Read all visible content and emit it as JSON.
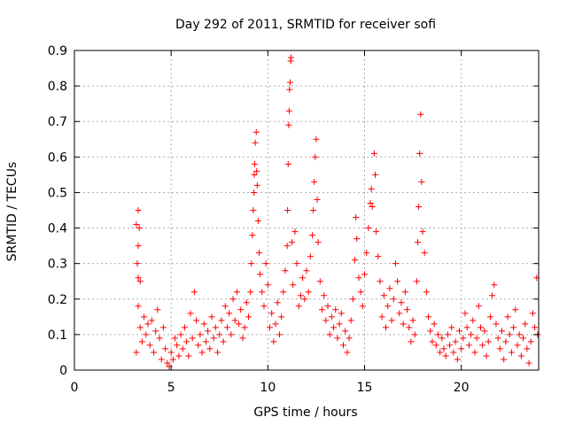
{
  "chart_data": {
    "type": "scatter",
    "title": "Day 292 of 2011, SRMTID for receiver sofi",
    "xlabel": "GPS time / hours",
    "ylabel": "SRMTID / TECUs",
    "xlim": [
      0,
      24
    ],
    "ylim": [
      0,
      0.9
    ],
    "xticks": [
      0,
      5,
      10,
      15,
      20
    ],
    "xtick_labels": [
      "0",
      "5",
      "10",
      "15",
      "20"
    ],
    "yticks": [
      0,
      0.1,
      0.2,
      0.3,
      0.4,
      0.5,
      0.6,
      0.7,
      0.8,
      0.9
    ],
    "ytick_labels": [
      "0",
      "0.1",
      "0.2",
      "0.3",
      "0.4",
      "0.5",
      "0.6",
      "0.7",
      "0.8",
      "0.9"
    ],
    "grid": true,
    "marker": "+",
    "colors": {
      "series": "#ff0000",
      "grid": "#b0b0b0",
      "axis": "#000000"
    },
    "series": [
      {
        "name": "SRMTID",
        "points": [
          [
            3.2,
            0.41
          ],
          [
            3.3,
            0.45
          ],
          [
            3.35,
            0.4
          ],
          [
            3.3,
            0.35
          ],
          [
            3.25,
            0.3
          ],
          [
            3.3,
            0.26
          ],
          [
            3.4,
            0.25
          ],
          [
            3.3,
            0.18
          ],
          [
            3.4,
            0.12
          ],
          [
            3.5,
            0.08
          ],
          [
            3.2,
            0.05
          ],
          [
            3.6,
            0.15
          ],
          [
            3.7,
            0.1
          ],
          [
            3.8,
            0.13
          ],
          [
            3.9,
            0.07
          ],
          [
            4.0,
            0.14
          ],
          [
            4.1,
            0.05
          ],
          [
            4.2,
            0.11
          ],
          [
            4.3,
            0.17
          ],
          [
            4.4,
            0.09
          ],
          [
            4.5,
            0.03
          ],
          [
            4.6,
            0.12
          ],
          [
            4.7,
            0.06
          ],
          [
            4.8,
            0.02
          ],
          [
            4.9,
            0.01
          ],
          [
            5.0,
            0.05
          ],
          [
            5.1,
            0.03
          ],
          [
            5.2,
            0.09
          ],
          [
            5.3,
            0.07
          ],
          [
            5.4,
            0.04
          ],
          [
            5.5,
            0.1
          ],
          [
            5.6,
            0.06
          ],
          [
            5.7,
            0.12
          ],
          [
            5.8,
            0.08
          ],
          [
            5.9,
            0.04
          ],
          [
            6.0,
            0.16
          ],
          [
            6.1,
            0.09
          ],
          [
            6.2,
            0.22
          ],
          [
            6.3,
            0.14
          ],
          [
            6.4,
            0.07
          ],
          [
            6.5,
            0.1
          ],
          [
            6.6,
            0.05
          ],
          [
            6.7,
            0.13
          ],
          [
            6.8,
            0.08
          ],
          [
            6.9,
            0.11
          ],
          [
            7.0,
            0.06
          ],
          [
            7.1,
            0.15
          ],
          [
            7.2,
            0.09
          ],
          [
            7.3,
            0.12
          ],
          [
            7.4,
            0.05
          ],
          [
            7.5,
            0.1
          ],
          [
            7.6,
            0.14
          ],
          [
            7.7,
            0.08
          ],
          [
            7.8,
            0.18
          ],
          [
            7.9,
            0.12
          ],
          [
            8.0,
            0.16
          ],
          [
            8.1,
            0.1
          ],
          [
            8.2,
            0.2
          ],
          [
            8.3,
            0.14
          ],
          [
            8.4,
            0.22
          ],
          [
            8.5,
            0.13
          ],
          [
            8.6,
            0.17
          ],
          [
            8.7,
            0.09
          ],
          [
            8.8,
            0.12
          ],
          [
            8.9,
            0.19
          ],
          [
            9.0,
            0.15
          ],
          [
            9.1,
            0.22
          ],
          [
            9.15,
            0.3
          ],
          [
            9.2,
            0.38
          ],
          [
            9.25,
            0.45
          ],
          [
            9.28,
            0.5
          ],
          [
            9.3,
            0.55
          ],
          [
            9.32,
            0.58
          ],
          [
            9.35,
            0.64
          ],
          [
            9.4,
            0.67
          ],
          [
            9.42,
            0.56
          ],
          [
            9.45,
            0.52
          ],
          [
            9.5,
            0.42
          ],
          [
            9.55,
            0.33
          ],
          [
            9.6,
            0.27
          ],
          [
            9.7,
            0.22
          ],
          [
            9.8,
            0.18
          ],
          [
            9.9,
            0.3
          ],
          [
            10.0,
            0.24
          ],
          [
            10.1,
            0.12
          ],
          [
            10.2,
            0.16
          ],
          [
            10.3,
            0.08
          ],
          [
            10.4,
            0.13
          ],
          [
            10.5,
            0.19
          ],
          [
            10.6,
            0.1
          ],
          [
            10.7,
            0.15
          ],
          [
            10.8,
            0.22
          ],
          [
            10.9,
            0.28
          ],
          [
            11.0,
            0.35
          ],
          [
            11.02,
            0.45
          ],
          [
            11.05,
            0.58
          ],
          [
            11.08,
            0.69
          ],
          [
            11.1,
            0.73
          ],
          [
            11.12,
            0.79
          ],
          [
            11.15,
            0.81
          ],
          [
            11.18,
            0.87
          ],
          [
            11.2,
            0.88
          ],
          [
            11.25,
            0.36
          ],
          [
            11.3,
            0.24
          ],
          [
            11.4,
            0.39
          ],
          [
            11.5,
            0.3
          ],
          [
            11.6,
            0.18
          ],
          [
            11.7,
            0.21
          ],
          [
            11.8,
            0.26
          ],
          [
            11.9,
            0.2
          ],
          [
            12.0,
            0.28
          ],
          [
            12.1,
            0.22
          ],
          [
            12.2,
            0.32
          ],
          [
            12.3,
            0.38
          ],
          [
            12.35,
            0.45
          ],
          [
            12.4,
            0.53
          ],
          [
            12.45,
            0.6
          ],
          [
            12.5,
            0.65
          ],
          [
            12.55,
            0.48
          ],
          [
            12.6,
            0.36
          ],
          [
            12.7,
            0.25
          ],
          [
            12.8,
            0.17
          ],
          [
            12.9,
            0.21
          ],
          [
            13.0,
            0.14
          ],
          [
            13.1,
            0.18
          ],
          [
            13.2,
            0.1
          ],
          [
            13.3,
            0.15
          ],
          [
            13.4,
            0.12
          ],
          [
            13.5,
            0.17
          ],
          [
            13.6,
            0.09
          ],
          [
            13.7,
            0.13
          ],
          [
            13.8,
            0.16
          ],
          [
            13.9,
            0.07
          ],
          [
            14.0,
            0.11
          ],
          [
            14.1,
            0.05
          ],
          [
            14.2,
            0.09
          ],
          [
            14.3,
            0.14
          ],
          [
            14.4,
            0.2
          ],
          [
            14.5,
            0.31
          ],
          [
            14.55,
            0.43
          ],
          [
            14.6,
            0.37
          ],
          [
            14.7,
            0.26
          ],
          [
            14.8,
            0.22
          ],
          [
            14.9,
            0.18
          ],
          [
            15.0,
            0.27
          ],
          [
            15.1,
            0.33
          ],
          [
            15.2,
            0.4
          ],
          [
            15.3,
            0.47
          ],
          [
            15.35,
            0.51
          ],
          [
            15.4,
            0.46
          ],
          [
            15.5,
            0.61
          ],
          [
            15.55,
            0.55
          ],
          [
            15.6,
            0.39
          ],
          [
            15.7,
            0.32
          ],
          [
            15.8,
            0.25
          ],
          [
            15.9,
            0.15
          ],
          [
            16.0,
            0.21
          ],
          [
            16.1,
            0.12
          ],
          [
            16.2,
            0.18
          ],
          [
            16.3,
            0.23
          ],
          [
            16.4,
            0.14
          ],
          [
            16.5,
            0.2
          ],
          [
            16.6,
            0.3
          ],
          [
            16.7,
            0.25
          ],
          [
            16.8,
            0.16
          ],
          [
            16.9,
            0.19
          ],
          [
            17.0,
            0.13
          ],
          [
            17.1,
            0.22
          ],
          [
            17.2,
            0.17
          ],
          [
            17.3,
            0.12
          ],
          [
            17.4,
            0.08
          ],
          [
            17.5,
            0.14
          ],
          [
            17.6,
            0.1
          ],
          [
            17.7,
            0.25
          ],
          [
            17.75,
            0.36
          ],
          [
            17.8,
            0.46
          ],
          [
            17.85,
            0.61
          ],
          [
            17.9,
            0.72
          ],
          [
            17.95,
            0.53
          ],
          [
            18.0,
            0.39
          ],
          [
            18.1,
            0.33
          ],
          [
            18.2,
            0.22
          ],
          [
            18.3,
            0.15
          ],
          [
            18.4,
            0.11
          ],
          [
            18.5,
            0.08
          ],
          [
            18.6,
            0.13
          ],
          [
            18.7,
            0.07
          ],
          [
            18.8,
            0.1
          ],
          [
            18.9,
            0.05
          ],
          [
            19.0,
            0.09
          ],
          [
            19.1,
            0.06
          ],
          [
            19.2,
            0.04
          ],
          [
            19.3,
            0.1
          ],
          [
            19.4,
            0.07
          ],
          [
            19.5,
            0.12
          ],
          [
            19.6,
            0.05
          ],
          [
            19.7,
            0.08
          ],
          [
            19.8,
            0.03
          ],
          [
            19.9,
            0.11
          ],
          [
            20.0,
            0.06
          ],
          [
            20.1,
            0.09
          ],
          [
            20.2,
            0.16
          ],
          [
            20.3,
            0.12
          ],
          [
            20.4,
            0.07
          ],
          [
            20.5,
            0.1
          ],
          [
            20.6,
            0.14
          ],
          [
            20.7,
            0.05
          ],
          [
            20.8,
            0.09
          ],
          [
            20.9,
            0.18
          ],
          [
            21.0,
            0.12
          ],
          [
            21.1,
            0.07
          ],
          [
            21.2,
            0.11
          ],
          [
            21.3,
            0.04
          ],
          [
            21.4,
            0.08
          ],
          [
            21.5,
            0.15
          ],
          [
            21.6,
            0.21
          ],
          [
            21.7,
            0.24
          ],
          [
            21.8,
            0.13
          ],
          [
            21.9,
            0.09
          ],
          [
            22.0,
            0.06
          ],
          [
            22.1,
            0.11
          ],
          [
            22.2,
            0.03
          ],
          [
            22.3,
            0.08
          ],
          [
            22.4,
            0.15
          ],
          [
            22.5,
            0.1
          ],
          [
            22.6,
            0.05
          ],
          [
            22.7,
            0.12
          ],
          [
            22.8,
            0.17
          ],
          [
            22.9,
            0.07
          ],
          [
            23.0,
            0.1
          ],
          [
            23.1,
            0.04
          ],
          [
            23.2,
            0.09
          ],
          [
            23.3,
            0.13
          ],
          [
            23.4,
            0.06
          ],
          [
            23.5,
            0.02
          ],
          [
            23.6,
            0.08
          ],
          [
            23.7,
            0.16
          ],
          [
            23.8,
            0.12
          ],
          [
            23.9,
            0.26
          ],
          [
            23.95,
            0.1
          ]
        ]
      }
    ]
  }
}
